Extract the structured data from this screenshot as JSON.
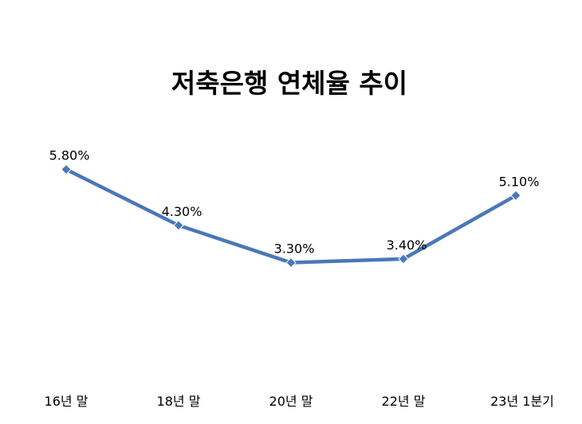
{
  "chart_data": {
    "type": "line",
    "title": "저축은행 연체율 추이",
    "categories": [
      "16년 말",
      "18년 말",
      "20년 말",
      "22년 말",
      "23년 1분기"
    ],
    "series": [
      {
        "name": "연체율",
        "values": [
          5.8,
          4.3,
          3.3,
          3.4,
          5.1
        ],
        "labels": [
          "5.80%",
          "4.30%",
          "3.30%",
          "3.40%",
          "5.10%"
        ],
        "color": "#4a78b8"
      }
    ],
    "xlabel": "",
    "ylabel": "",
    "ylim": [
      0,
      10
    ],
    "grid": false,
    "legend": "none"
  }
}
